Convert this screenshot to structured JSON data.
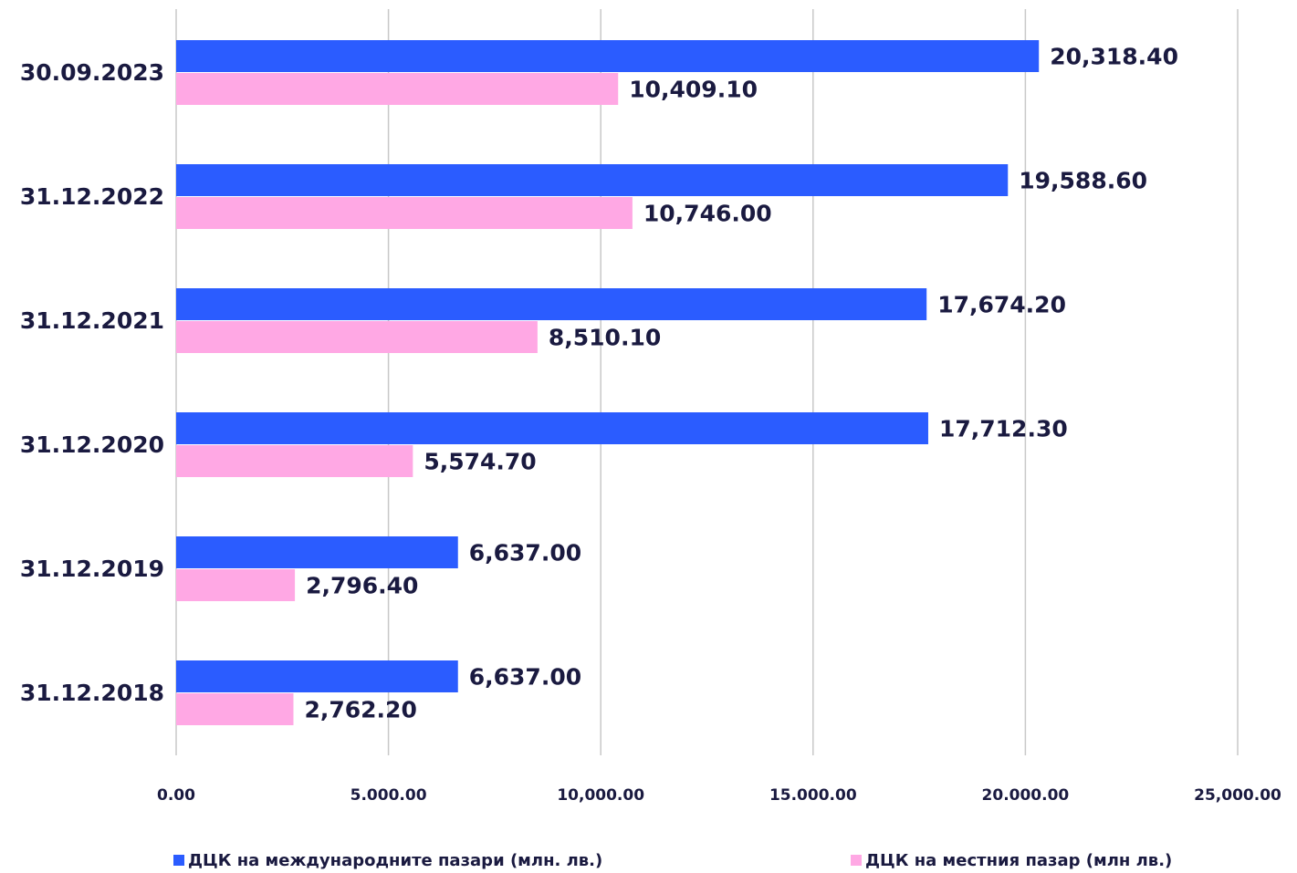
{
  "chart_data": {
    "type": "bar",
    "orientation": "horizontal",
    "categories": [
      "30.09.2023",
      "31.12.2022",
      "31.12.2021",
      "31.12.2020",
      "31.12.2019",
      "31.12.2018"
    ],
    "series": [
      {
        "name": "ДЦК на международните пазари (млн. лв.)",
        "color": "#2b5cff",
        "values": [
          20318.4,
          19588.6,
          17674.2,
          17712.3,
          6637,
          6637
        ],
        "value_labels": [
          "20,318.40",
          "19,588.60",
          "17,674.20",
          "17,712.30",
          "6,637.00",
          "6,637.00"
        ]
      },
      {
        "name": "ДЦК на местния пазар (млн лв.)",
        "color": "#ffa8e4",
        "values": [
          10409.1,
          10746,
          8510.1,
          5574.7,
          2796.4,
          2762.2
        ],
        "value_labels": [
          "10,409.10",
          "10,746.00",
          "8,510.10",
          "5,574.70",
          "2,796.40",
          "2,762.20"
        ]
      }
    ],
    "xlim": [
      0,
      25000
    ],
    "xticks": [
      {
        "value": 0,
        "label": "0.00"
      },
      {
        "value": 5000,
        "label": "5.000.00"
      },
      {
        "value": 10000,
        "label": "10,000.00"
      },
      {
        "value": 15000,
        "label": "15.000.00"
      },
      {
        "value": 20000,
        "label": "20.000.00"
      },
      {
        "value": 25000,
        "label": "25,000.00"
      }
    ],
    "grid": true,
    "legend": "bottom"
  }
}
